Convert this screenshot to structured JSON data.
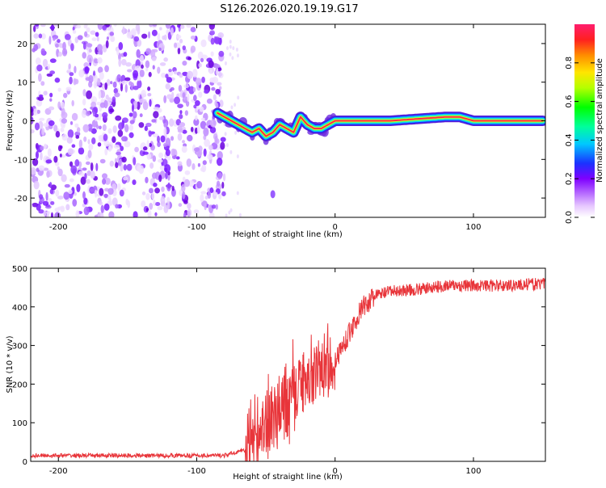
{
  "title": "S126.2026.020.19.19.G17",
  "chart_data": [
    {
      "type": "heatmap",
      "xlabel": "Height of straight line (km)",
      "ylabel": "Frequency (Hz)",
      "xlim": [
        -220,
        152
      ],
      "ylim": [
        -25,
        25
      ],
      "xticks": [
        -200,
        -100,
        0,
        100
      ],
      "yticks": [
        -20,
        -10,
        0,
        10,
        20
      ],
      "ridge_frequency": {
        "x": [
          -85,
          -75,
          -70,
          -65,
          -60,
          -55,
          -50,
          -45,
          -40,
          -35,
          -30,
          -25,
          -20,
          -15,
          -10,
          -5,
          0,
          10,
          20,
          40,
          60,
          80,
          90,
          100,
          120,
          150
        ],
        "y": [
          2,
          0,
          -1,
          -2,
          -3,
          -2,
          -4,
          -3,
          -1,
          -2,
          -3,
          1,
          -1,
          -2,
          -2,
          -1,
          0,
          0,
          0,
          0,
          0.5,
          1,
          1,
          0,
          0,
          0
        ]
      },
      "noise_region_x": [
        -220,
        -80
      ],
      "colorbar": {
        "label": "Normalized spectral amplitude",
        "range": [
          0,
          1
        ],
        "ticks": [
          0.0,
          0.2,
          0.4,
          0.6,
          0.8
        ]
      }
    },
    {
      "type": "line",
      "xlabel": "Height of straight line (km)",
      "ylabel": "SNR (10 * v/v)",
      "xlim": [
        -220,
        152
      ],
      "ylim": [
        0,
        500
      ],
      "xticks": [
        -200,
        -100,
        0,
        100
      ],
      "yticks": [
        0,
        100,
        200,
        300,
        400,
        500
      ],
      "color": "#e8353a",
      "trend": {
        "x": [
          -220,
          -150,
          -80,
          -65,
          -60,
          -50,
          -40,
          -30,
          -20,
          -10,
          0,
          10,
          20,
          30,
          40,
          60,
          80,
          100,
          120,
          152
        ],
        "y": [
          15,
          15,
          15,
          30,
          60,
          80,
          120,
          170,
          220,
          230,
          260,
          330,
          400,
          430,
          440,
          445,
          455,
          455,
          455,
          460
        ]
      }
    }
  ]
}
